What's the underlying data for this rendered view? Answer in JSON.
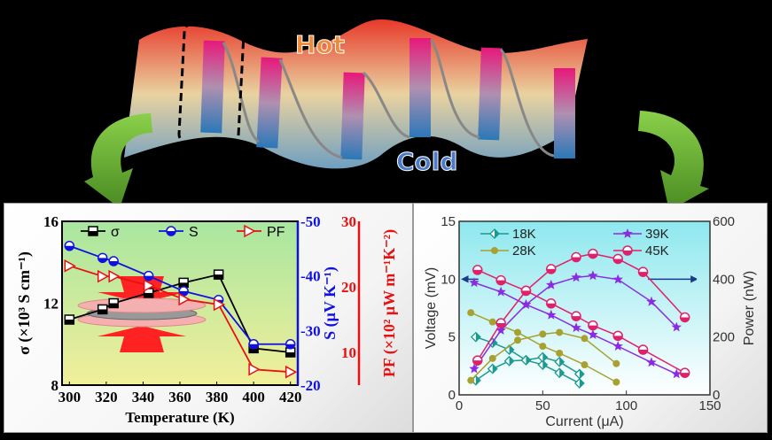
{
  "diagram": {
    "hot_label": "Hot",
    "cold_label": "Cold",
    "colors": {
      "hot": "#e8392a",
      "cold": "#6f9fc0",
      "leg_top": "#e8187a",
      "leg_bottom": "#2a78b8",
      "arrow": "#5fae2e"
    }
  },
  "chart_data": [
    {
      "type": "line",
      "xlabel": "Temperature (K)",
      "xlim": [
        296,
        424
      ],
      "xticks": [
        300,
        320,
        340,
        360,
        380,
        400,
        420
      ],
      "axes": {
        "left": {
          "label": "σ (×10³ S cm⁻¹)",
          "ylim": [
            8,
            16
          ],
          "ticks": [
            8,
            12,
            16
          ],
          "color": "#000000"
        },
        "right1": {
          "label": "S (μV K⁻¹)",
          "ylim": [
            -20,
            -50
          ],
          "ticks": [
            -20,
            -30,
            -40,
            -50
          ],
          "color": "#1010e0"
        },
        "right2": {
          "label": "PF (×10² μW m⁻¹K⁻²)",
          "ylim": [
            5,
            30
          ],
          "ticks": [
            10,
            20,
            30
          ],
          "color": "#e81010"
        }
      },
      "background": [
        "#a8e6a0",
        "#f2ef9a"
      ],
      "legend_position": "top",
      "series": [
        {
          "name": "σ",
          "axis": "left",
          "marker": "half-square",
          "color": "#000000",
          "x": [
            300,
            318,
            324,
            343,
            362,
            381,
            400,
            420
          ],
          "y": [
            11.2,
            11.7,
            12.0,
            12.5,
            13.0,
            13.4,
            9.8,
            9.6
          ]
        },
        {
          "name": "S",
          "axis": "right1",
          "marker": "half-circle",
          "color": "#1010e0",
          "x": [
            300,
            318,
            324,
            343,
            362,
            381,
            400,
            420
          ],
          "y": [
            -45.5,
            -43.3,
            -42.7,
            -40.0,
            -37.2,
            -35.6,
            -27.5,
            -27.5
          ]
        },
        {
          "name": "PF",
          "axis": "right2",
          "marker": "right-triangle",
          "color": "#e81010",
          "x": [
            300,
            318,
            324,
            343,
            362,
            381,
            400,
            420
          ],
          "y": [
            23.2,
            21.6,
            21.6,
            20.2,
            18.1,
            17.3,
            7.4,
            7.0
          ]
        }
      ]
    },
    {
      "type": "line",
      "xlabel": "Current (μA)",
      "xlim": [
        0,
        150
      ],
      "xticks": [
        0,
        50,
        100,
        150
      ],
      "axes": {
        "left": {
          "label": "Voltage (mV)",
          "ylim": [
            0,
            15
          ],
          "ticks": [
            0,
            5,
            10,
            15
          ]
        },
        "right": {
          "label": "Power (nW)",
          "ylim": [
            0,
            600
          ],
          "ticks": [
            0,
            200,
            400,
            600
          ]
        }
      },
      "background": [
        "#8ee8ee",
        "#ffffff"
      ],
      "legend_position": "top",
      "series": [
        {
          "name": "18K",
          "color": "#1a9a90",
          "marker": "half-diamond",
          "current": [
            10,
            20,
            30,
            40,
            50,
            60,
            72
          ],
          "voltage": [
            5.0,
            4.5,
            3.9,
            3.0,
            2.6,
            1.9,
            1.0
          ],
          "power": [
            50,
            90,
            117,
            120,
            130,
            114,
            72
          ]
        },
        {
          "name": "28K",
          "color": "#a8a030",
          "marker": "circle",
          "current": [
            7,
            20,
            35,
            50,
            60,
            75,
            94
          ],
          "voltage": [
            7.1,
            6.3,
            5.4,
            4.2,
            3.6,
            2.6,
            1.1
          ],
          "power": [
            50,
            126,
            189,
            210,
            216,
            195,
            108
          ]
        },
        {
          "name": "39K",
          "color": "#8a2be2",
          "marker": "star",
          "current": [
            9,
            25,
            40,
            55,
            70,
            80,
            95,
            115,
            130
          ],
          "voltage": [
            9.7,
            8.9,
            7.8,
            6.9,
            5.8,
            5.2,
            4.2,
            2.8,
            1.8
          ],
          "power": [
            90,
            223,
            312,
            380,
            406,
            412,
            399,
            322,
            234
          ]
        },
        {
          "name": "45K",
          "color": "#e0206a",
          "marker": "half-circle",
          "current": [
            11,
            25,
            40,
            55,
            70,
            80,
            95,
            110,
            135
          ],
          "voltage": [
            10.8,
            9.9,
            9.0,
            7.9,
            6.8,
            6.0,
            5.1,
            3.9,
            1.9
          ],
          "power": [
            119,
            248,
            360,
            435,
            476,
            488,
            470,
            425,
            268
          ]
        }
      ]
    }
  ]
}
